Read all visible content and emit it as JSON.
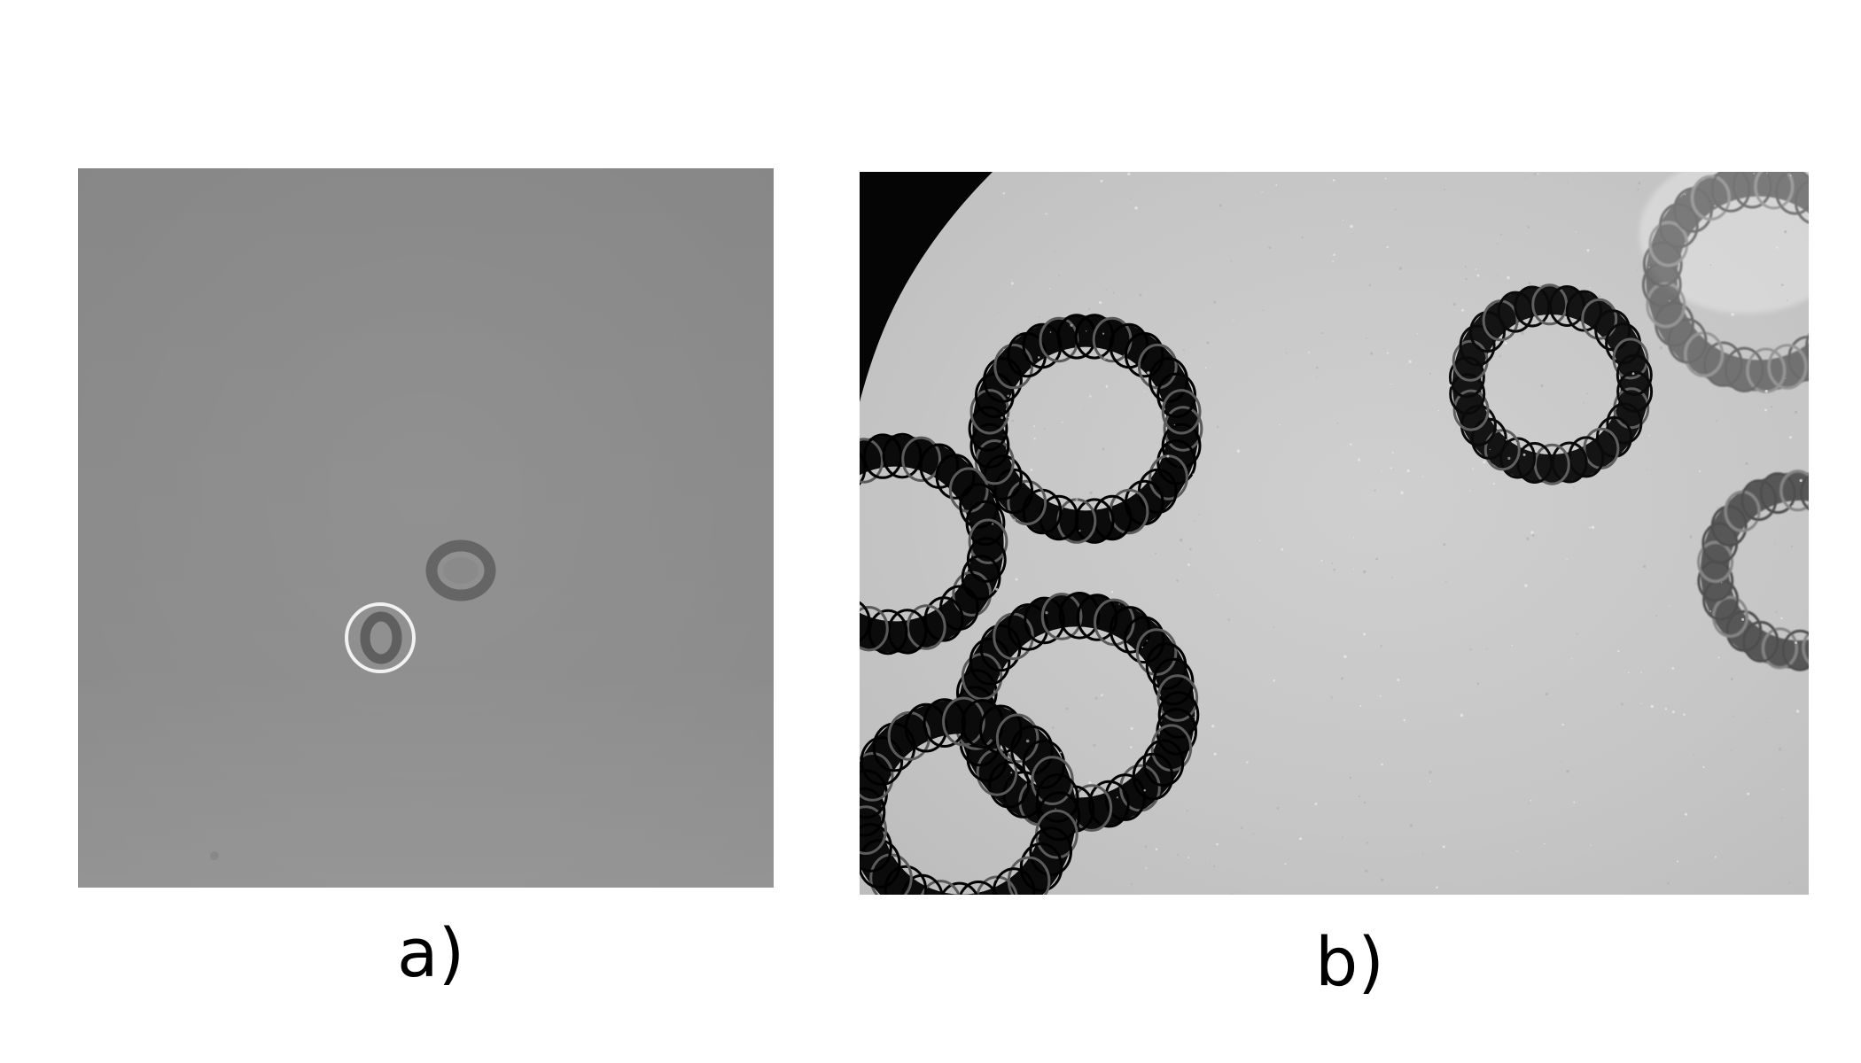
{
  "figure": {
    "panels": [
      {
        "label": "a)",
        "description_color": "#8f8f8f",
        "marker_color": "#f2f2f2"
      },
      {
        "label": "b)",
        "description_color": "#c9c9c9",
        "ring_color": "#0b0b0b"
      }
    ]
  }
}
